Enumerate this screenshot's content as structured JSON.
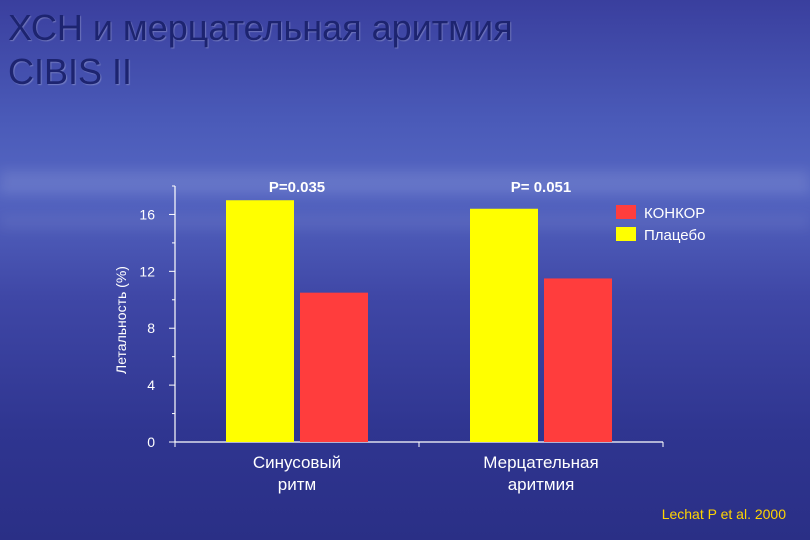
{
  "slide": {
    "title_line1": "ХСН и мерцательная аритмия",
    "title_line2": "CIBIS II",
    "citation": "Lechat P et al. 2000"
  },
  "colors": {
    "konkor": "#ff3d3d",
    "placebo": "#ffff00",
    "text": "#ffffff",
    "axis": "#ffffff",
    "title": "#1d2470",
    "citation": "#ffd400"
  },
  "chart_data": {
    "type": "bar",
    "ylabel": "Летальность (%)",
    "ylim": [
      0,
      18
    ],
    "yticks": [
      0,
      4,
      8,
      12,
      16
    ],
    "grid": false,
    "legend_position": "top-right",
    "categories": [
      {
        "line1": "Синусовый",
        "line2": "ритм",
        "annotation": "P=0.035"
      },
      {
        "line1": "Мерцательная",
        "line2": "аритмия",
        "annotation": "P= 0.051"
      }
    ],
    "series": [
      {
        "name": "Плацебо",
        "color": "#ffff00",
        "values": [
          17.0,
          16.4
        ]
      },
      {
        "name": "КОНКОР",
        "color": "#ff3d3d",
        "values": [
          10.5,
          11.5
        ]
      }
    ],
    "legend_order": [
      "КОНКОР",
      "Плацебо"
    ]
  }
}
